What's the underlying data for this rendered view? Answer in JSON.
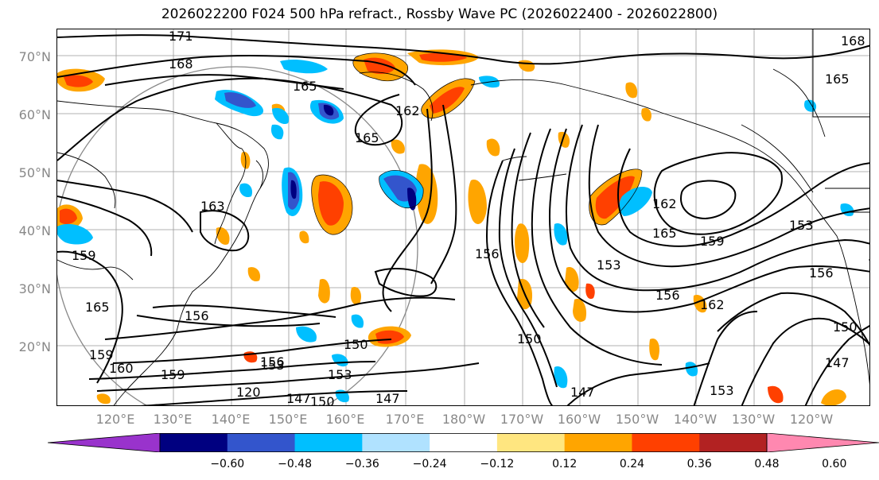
{
  "title": "2026022200 F024 500 hPa refract., Rossby Wave PC (2026022400 - 2026022800)",
  "lat_labels": [
    "70°N",
    "60°N",
    "50°N",
    "40°N",
    "30°N",
    "20°N"
  ],
  "lon_labels": [
    "120°E",
    "130°E",
    "140°E",
    "150°E",
    "160°E",
    "170°E",
    "180°W",
    "170°W",
    "160°W",
    "150°W",
    "140°W",
    "130°W",
    "120°W"
  ],
  "contour_labels": [
    "171",
    "168",
    "165",
    "162",
    "165",
    "163",
    "162",
    "165",
    "159",
    "153",
    "159",
    "156",
    "156",
    "153",
    "156",
    "150",
    "150",
    "147",
    "147",
    "156",
    "153",
    "153",
    "159",
    "165",
    "162",
    "150",
    "147",
    "153",
    "159",
    "160",
    "156",
    "120",
    "147",
    "150",
    "168",
    "165"
  ],
  "colorbar": {
    "ticks": [
      "−0.60",
      "−0.48",
      "−0.36",
      "−0.24",
      "−0.12",
      "0.12",
      "0.24",
      "0.36",
      "0.48",
      "0.60"
    ],
    "colors": [
      "#9933cc",
      "#000080",
      "#3355cc",
      "#00bfff",
      "#b0e2ff",
      "#ffffff",
      "#ffe680",
      "#ffa500",
      "#ff4000",
      "#b22222",
      "#ff88b0"
    ]
  }
}
